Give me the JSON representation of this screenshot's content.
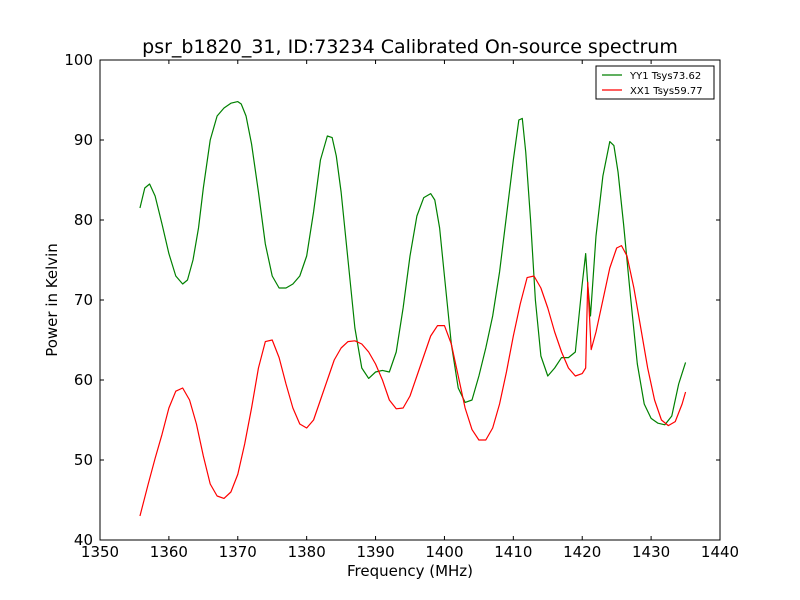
{
  "chart_data": {
    "type": "line",
    "title": "psr_b1820_31, ID:73234 Calibrated On-source spectrum",
    "xlabel": "Frequency (MHz)",
    "ylabel": "Power in Kelvin",
    "xlim": [
      1350,
      1440
    ],
    "ylim": [
      40,
      100
    ],
    "xticks": [
      1350,
      1360,
      1370,
      1380,
      1390,
      1400,
      1410,
      1420,
      1430,
      1440
    ],
    "yticks": [
      40,
      50,
      60,
      70,
      80,
      90,
      100
    ],
    "grid": false,
    "legend_position": "top-right",
    "series": [
      {
        "name": "YY1 Tsys73.62",
        "color": "#008000",
        "x": [
          1355.8,
          1356.5,
          1357.2,
          1358.0,
          1359.0,
          1360.0,
          1361.0,
          1362.0,
          1362.7,
          1363.5,
          1364.3,
          1365.0,
          1366.0,
          1367.0,
          1368.0,
          1369.0,
          1370.0,
          1370.5,
          1371.2,
          1372.0,
          1373.0,
          1374.0,
          1375.0,
          1376.0,
          1377.0,
          1378.0,
          1379.0,
          1380.0,
          1381.0,
          1382.0,
          1383.0,
          1383.7,
          1384.3,
          1385.0,
          1386.0,
          1387.0,
          1388.0,
          1389.0,
          1390.0,
          1391.0,
          1392.0,
          1393.0,
          1394.0,
          1395.0,
          1396.0,
          1397.0,
          1398.0,
          1398.6,
          1399.3,
          1400.0,
          1401.0,
          1402.0,
          1403.0,
          1404.0,
          1405.0,
          1406.0,
          1407.0,
          1408.0,
          1409.0,
          1410.0,
          1410.8,
          1411.3,
          1411.8,
          1412.5,
          1413.2,
          1414.0,
          1415.0,
          1416.0,
          1417.0,
          1418.0,
          1419.0,
          1420.0,
          1420.5,
          1420.8,
          1421.2,
          1422.0,
          1423.0,
          1424.0,
          1424.6,
          1425.2,
          1426.0,
          1427.0,
          1428.0,
          1429.0,
          1430.0,
          1431.0,
          1432.0,
          1433.0,
          1434.0,
          1435.0
        ],
        "y": [
          81.5,
          84.0,
          84.5,
          83.0,
          79.5,
          75.8,
          73.0,
          72.0,
          72.5,
          75.0,
          79.0,
          84.0,
          90.0,
          93.0,
          94.0,
          94.6,
          94.8,
          94.5,
          93.0,
          89.5,
          83.5,
          77.0,
          73.0,
          71.5,
          71.5,
          72.0,
          73.0,
          75.5,
          81.0,
          87.5,
          90.5,
          90.3,
          88.0,
          83.5,
          75.0,
          66.5,
          61.5,
          60.2,
          61.0,
          61.2,
          61.0,
          63.5,
          69.0,
          75.5,
          80.5,
          82.8,
          83.3,
          82.5,
          79.0,
          73.0,
          64.5,
          59.0,
          57.2,
          57.5,
          60.5,
          64.0,
          68.0,
          73.5,
          80.5,
          87.5,
          92.5,
          92.7,
          88.5,
          80.0,
          70.0,
          63.0,
          60.5,
          61.5,
          62.8,
          62.8,
          63.5,
          72.0,
          75.8,
          72.0,
          68.0,
          78.0,
          85.5,
          89.8,
          89.3,
          86.0,
          79.5,
          70.5,
          62.0,
          57.0,
          55.2,
          54.6,
          54.4,
          55.5,
          59.5,
          62.2
        ]
      },
      {
        "name": "XX1 Tsys59.77",
        "color": "#ff0000",
        "x": [
          1355.8,
          1357.0,
          1358.0,
          1359.0,
          1360.0,
          1361.0,
          1362.0,
          1363.0,
          1364.0,
          1365.0,
          1366.0,
          1367.0,
          1368.0,
          1369.0,
          1370.0,
          1371.0,
          1372.0,
          1373.0,
          1374.0,
          1375.0,
          1376.0,
          1377.0,
          1378.0,
          1379.0,
          1380.0,
          1381.0,
          1382.0,
          1383.0,
          1384.0,
          1385.0,
          1386.0,
          1387.0,
          1388.0,
          1389.0,
          1390.0,
          1391.0,
          1392.0,
          1393.0,
          1394.0,
          1395.0,
          1396.0,
          1397.0,
          1398.0,
          1399.0,
          1400.0,
          1401.0,
          1402.0,
          1403.0,
          1404.0,
          1405.0,
          1406.0,
          1407.0,
          1408.0,
          1409.0,
          1410.0,
          1411.0,
          1412.0,
          1413.0,
          1414.0,
          1415.0,
          1416.0,
          1417.0,
          1418.0,
          1419.0,
          1420.0,
          1420.5,
          1420.8,
          1421.3,
          1422.0,
          1423.0,
          1424.0,
          1425.0,
          1425.7,
          1426.5,
          1427.5,
          1428.5,
          1429.5,
          1430.5,
          1431.5,
          1432.5,
          1433.5,
          1434.5,
          1435.0
        ],
        "y": [
          43.0,
          47.0,
          50.2,
          53.2,
          56.5,
          58.6,
          59.0,
          57.5,
          54.5,
          50.5,
          47.0,
          45.5,
          45.2,
          46.0,
          48.2,
          52.0,
          56.5,
          61.5,
          64.8,
          65.0,
          62.8,
          59.5,
          56.5,
          54.5,
          54.0,
          55.0,
          57.5,
          60.0,
          62.5,
          64.0,
          64.8,
          64.9,
          64.5,
          63.5,
          62.0,
          60.0,
          57.5,
          56.4,
          56.5,
          58.0,
          60.5,
          63.0,
          65.5,
          66.8,
          66.8,
          64.5,
          60.5,
          56.5,
          53.8,
          52.5,
          52.5,
          54.0,
          57.0,
          61.0,
          65.5,
          69.5,
          72.8,
          73.0,
          71.5,
          69.0,
          66.0,
          63.5,
          61.5,
          60.5,
          60.8,
          61.5,
          72.2,
          63.8,
          66.0,
          70.0,
          74.0,
          76.5,
          76.8,
          75.5,
          71.5,
          66.5,
          61.5,
          57.5,
          55.0,
          54.3,
          54.8,
          57.0,
          58.5
        ]
      }
    ]
  }
}
